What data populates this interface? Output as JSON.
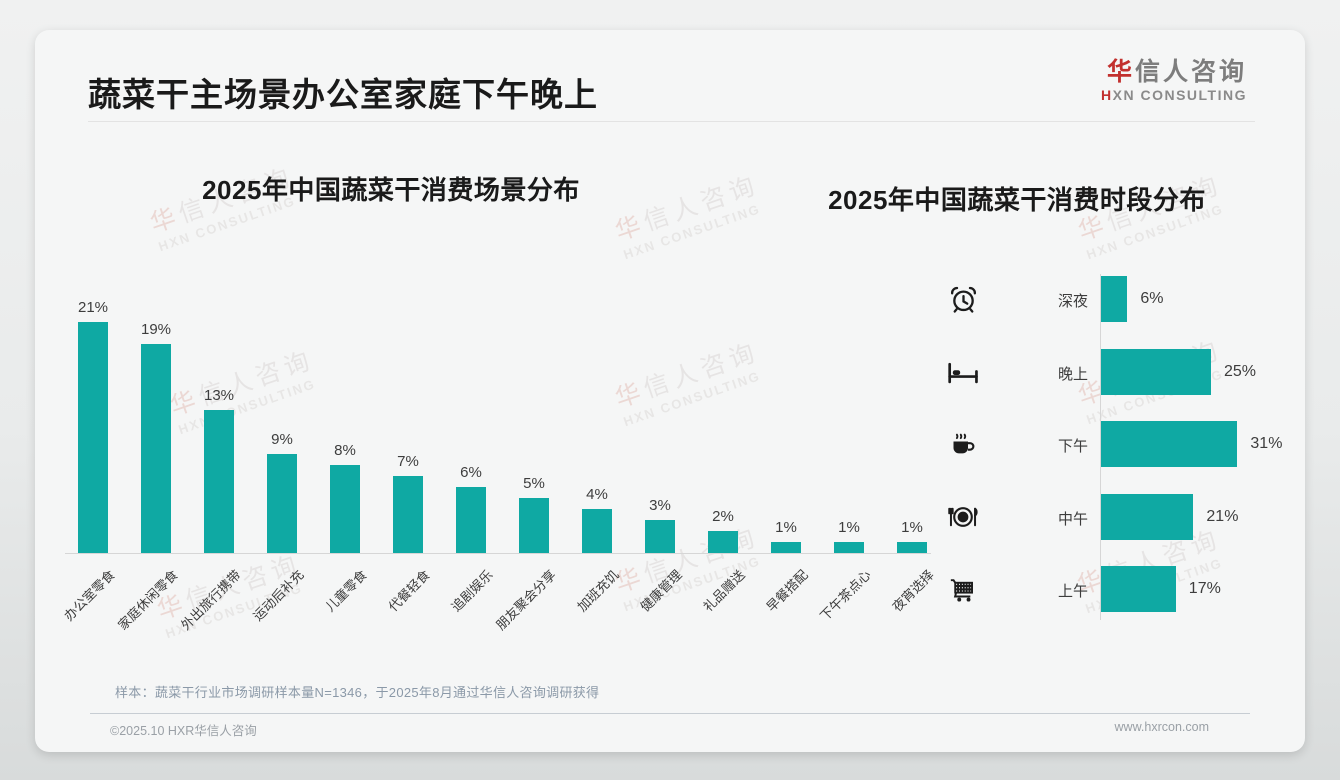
{
  "page": {
    "title": "蔬菜干主场景办公室家庭下午晚上",
    "logo": {
      "brand_cn_accent": "华",
      "brand_cn_rest": "信人咨询",
      "brand_en_accent": "H",
      "brand_en_rest": "XN CONSULTING"
    },
    "watermark_cn": "华信人咨询",
    "watermark_en": "HXN CONSULTING",
    "footnote": "样本：蔬菜干行业市场调研样本量N=1346，于2025年8月通过华信人咨询调研获得",
    "footer_left": "©2025.10 HXR华信人咨询",
    "footer_right": "www.hxrcon.com"
  },
  "colors": {
    "bar_teal": "#0fa9a3",
    "logo_red": "#c2302e",
    "title_black": "#1a1a1a",
    "axis_gray": "#d6d6d6"
  },
  "chart_data": [
    {
      "type": "bar",
      "orientation": "vertical",
      "title": "2025年中国蔬菜干消费场景分布",
      "categories": [
        "办公室零食",
        "家庭休闲零食",
        "外出旅行携带",
        "运动后补充",
        "儿童零食",
        "代餐轻食",
        "追剧娱乐",
        "朋友聚会分享",
        "加班充饥",
        "健康管理",
        "礼品赠送",
        "早餐搭配",
        "下午茶点心",
        "夜宵选择"
      ],
      "values": [
        21,
        19,
        13,
        9,
        8,
        7,
        6,
        5,
        4,
        3,
        2,
        1,
        1,
        1
      ],
      "unit": "%",
      "value_labels_shown": true,
      "grid": false,
      "ylim": [
        0,
        21
      ]
    },
    {
      "type": "bar",
      "orientation": "horizontal",
      "title": "2025年中国蔬菜干消费时段分布",
      "categories": [
        "深夜",
        "晚上",
        "下午",
        "中午",
        "上午"
      ],
      "values": [
        6,
        25,
        31,
        21,
        17
      ],
      "icons": [
        "alarm-clock-icon",
        "bed-icon",
        "coffee-cup-icon",
        "dining-plate-icon",
        "shopping-cart-icon"
      ],
      "unit": "%",
      "value_labels_shown": true,
      "grid": false,
      "xlim": [
        0,
        31
      ]
    }
  ]
}
